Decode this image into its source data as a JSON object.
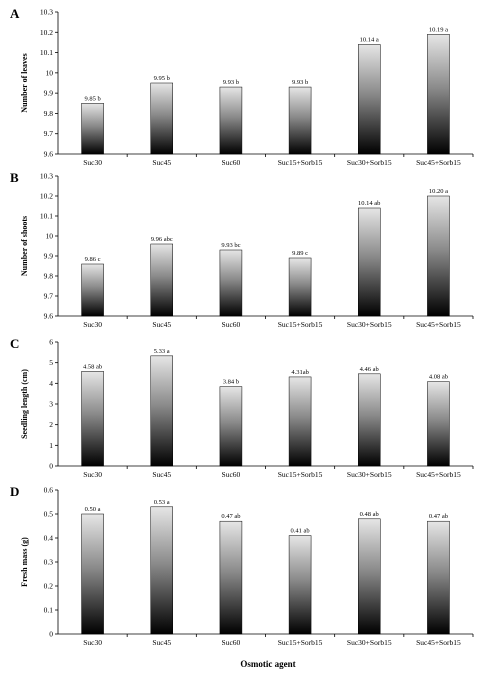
{
  "figure": {
    "xlabel": "Osmotic agent",
    "colors": {
      "bar_top": "#e6e6e6",
      "bar_bottom": "#000000",
      "axis": "#000000"
    }
  },
  "chart_data": [
    {
      "panel": "A",
      "type": "bar",
      "ylabel": "Number of leaves",
      "ylim": [
        9.6,
        10.3
      ],
      "yticks": [
        "9.6",
        "9.7",
        "9.8",
        "9.9",
        "10",
        "10.1",
        "10.2",
        "10.3"
      ],
      "categories": [
        "Suc30",
        "Suc45",
        "Suc60",
        "Suc15+Sorb15",
        "Suc30+Sorb15",
        "Suc45+Sorb15"
      ],
      "values": [
        9.85,
        9.95,
        9.93,
        9.93,
        10.14,
        10.19
      ],
      "labels": [
        "9.85 b",
        "9.95 b",
        "9.93 b",
        "9.93 b",
        "10.14 a",
        "10.19 a"
      ]
    },
    {
      "panel": "B",
      "type": "bar",
      "ylabel": "Number of shoots",
      "ylim": [
        9.6,
        10.3
      ],
      "yticks": [
        "9.6",
        "9.7",
        "9.8",
        "9.9",
        "10",
        "10.1",
        "10.2",
        "10.3"
      ],
      "categories": [
        "Suc30",
        "Suc45",
        "Suc60",
        "Suc15+Sorb15",
        "Suc30+Sorb15",
        "Suc45+Sorb15"
      ],
      "values": [
        9.86,
        9.96,
        9.93,
        9.89,
        10.14,
        10.2
      ],
      "labels": [
        "9.86 c",
        "9.96 abc",
        "9.93 bc",
        "9.89 c",
        "10.14 ab",
        "10.20 a"
      ]
    },
    {
      "panel": "C",
      "type": "bar",
      "ylabel": "Seedling length (cm)",
      "ylim": [
        0,
        6
      ],
      "yticks": [
        "0",
        "1",
        "2",
        "3",
        "4",
        "5",
        "6"
      ],
      "categories": [
        "Suc30",
        "Suc45",
        "Suc60",
        "Suc15+Sorb15",
        "Suc30+Sorb15",
        "Suc45+Sorb15"
      ],
      "values": [
        4.58,
        5.33,
        3.84,
        4.31,
        4.46,
        4.08
      ],
      "labels": [
        "4.58 ab",
        "5.33 a",
        "3.84 b",
        "4.31ab",
        "4.46 ab",
        "4.08 ab"
      ]
    },
    {
      "panel": "D",
      "type": "bar",
      "ylabel": "Fresh mass (g)",
      "ylim": [
        0,
        0.6
      ],
      "yticks": [
        "0",
        "0.1",
        "0.2",
        "0.3",
        "0.4",
        "0.5",
        "0.6"
      ],
      "categories": [
        "Suc30",
        "Suc45",
        "Suc60",
        "Suc15+Sorb15",
        "Suc30+Sorb15",
        "Suc45+Sorb15"
      ],
      "values": [
        0.5,
        0.53,
        0.47,
        0.41,
        0.48,
        0.47
      ],
      "labels": [
        "0.50 a",
        "0.53 a",
        "0.47 ab",
        "0.41 ab",
        "0.48 ab",
        "0.47 ab"
      ]
    }
  ]
}
